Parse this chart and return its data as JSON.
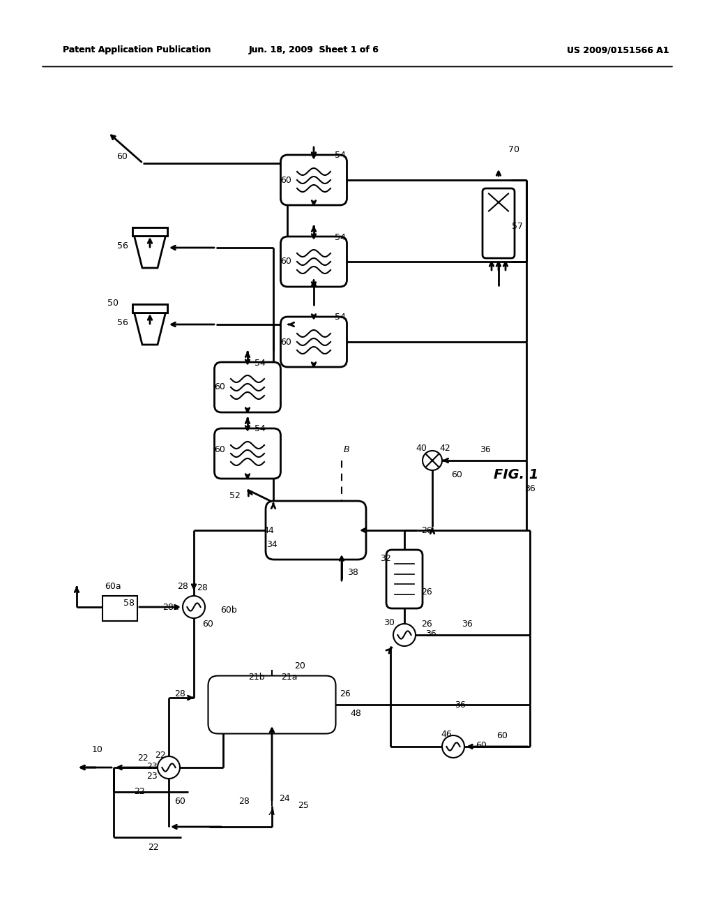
{
  "title_left": "Patent Application Publication",
  "title_center": "Jun. 18, 2009  Sheet 1 of 6",
  "title_right": "US 2009/0151566 A1",
  "fig_label": "FIG. 1",
  "background": "#ffffff",
  "line_color": "#000000"
}
